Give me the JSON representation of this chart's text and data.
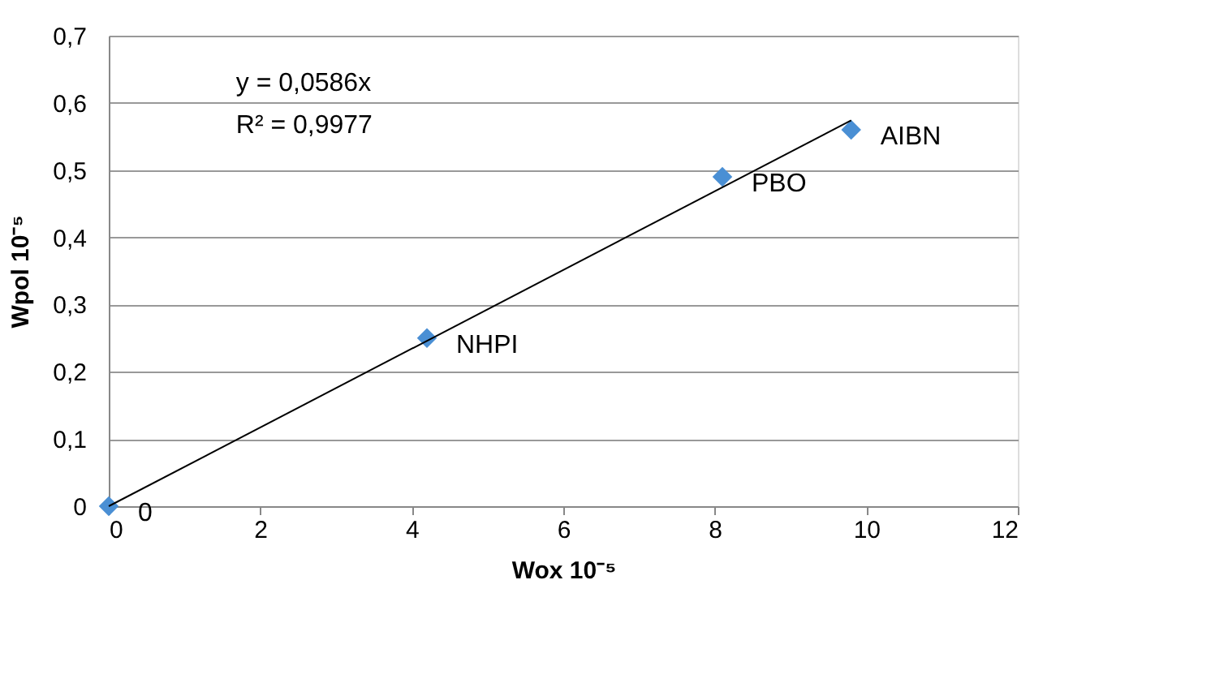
{
  "chart_data": {
    "type": "scatter",
    "xlabel": "Wox  10⁻⁵",
    "ylabel": "Wpol  10⁻⁵",
    "x": [
      0,
      4.2,
      8.1,
      9.8
    ],
    "series": [
      {
        "color": "#4a8fd4",
        "values": [
          0,
          0.25,
          0.49,
          0.56
        ],
        "marker": "diamond"
      },
      {
        "type": "line",
        "color": "#000000",
        "x": [
          0,
          9.8
        ],
        "values": [
          0,
          0.574
        ],
        "marker": "none",
        "line_style": "solid"
      }
    ],
    "xlim": [
      0,
      12
    ],
    "xticks": [
      0,
      2,
      4,
      6,
      8,
      10,
      12
    ],
    "ylim": [
      0,
      0.7
    ],
    "yticks": [
      {
        "value": 0,
        "label": "0"
      },
      {
        "value": 0.1,
        "label": "0,1"
      },
      {
        "value": 0.2,
        "label": "0,2"
      },
      {
        "value": 0.3,
        "label": "0,3"
      },
      {
        "value": 0.4,
        "label": "0,4"
      },
      {
        "value": 0.5,
        "label": "0,5"
      },
      {
        "value": 0.6,
        "label": "0,6"
      },
      {
        "value": 0.7,
        "label": "0,7"
      }
    ],
    "grid": "y",
    "annotations": [
      "y = 0,0586x",
      "R² = 0,9977",
      {
        "text": "0",
        "x": 0,
        "y": 0
      },
      {
        "text": "NHPI",
        "x": 4.2,
        "y": 0.25
      },
      {
        "text": "PBO",
        "x": 8.1,
        "y": 0.49
      },
      {
        "text": "AIBN",
        "x": 9.8,
        "y": 0.56
      }
    ]
  }
}
